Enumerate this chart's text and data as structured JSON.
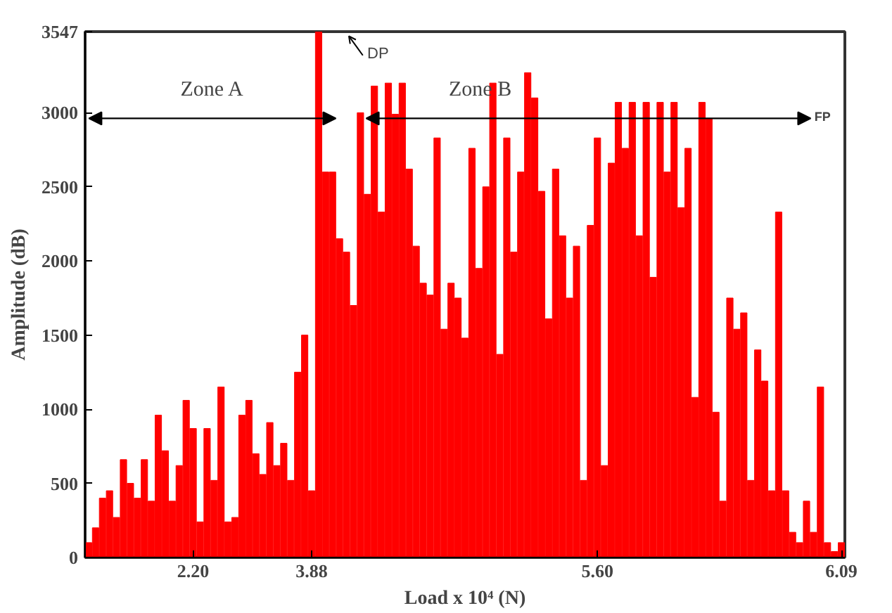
{
  "chart_data": {
    "type": "bar",
    "xlabel": "Load x 10⁴ (N)",
    "ylabel": "Amplitude (dB)",
    "color": "#ff0000",
    "categories": [
      null,
      null,
      null,
      null,
      null,
      null,
      null,
      null,
      null,
      null,
      null,
      null,
      null,
      null,
      null,
      "2.20",
      null,
      null,
      null,
      null,
      null,
      null,
      null,
      null,
      null,
      null,
      null,
      null,
      null,
      null,
      null,
      null,
      "3.88",
      null,
      null,
      null,
      null,
      null,
      null,
      null,
      null,
      null,
      null,
      null,
      null,
      null,
      null,
      null,
      null,
      null,
      null,
      null,
      null,
      null,
      null,
      null,
      null,
      null,
      null,
      null,
      null,
      null,
      null,
      null,
      null,
      null,
      null,
      null,
      null,
      null,
      null,
      null,
      null,
      "5.60",
      null,
      null,
      null,
      null,
      null,
      null,
      null,
      null,
      null,
      null,
      null,
      null,
      null,
      null,
      null,
      null,
      null,
      null,
      null,
      null,
      null,
      null,
      null,
      null,
      null,
      null,
      null,
      null,
      null,
      null,
      null,
      null,
      null,
      null,
      "6.09"
    ],
    "values": [
      100,
      200,
      400,
      450,
      270,
      660,
      500,
      400,
      660,
      380,
      960,
      720,
      380,
      620,
      1060,
      870,
      240,
      870,
      520,
      1150,
      240,
      270,
      960,
      1060,
      700,
      560,
      910,
      620,
      770,
      520,
      1250,
      1500,
      450,
      3547,
      2600,
      2600,
      2150,
      2060,
      1700,
      3000,
      2450,
      3180,
      2330,
      3200,
      2990,
      3200,
      2620,
      2100,
      1850,
      1770,
      2830,
      1540,
      1850,
      1750,
      1480,
      2760,
      1950,
      2500,
      3200,
      1370,
      2830,
      2060,
      2600,
      3270,
      3100,
      2470,
      1610,
      2620,
      2170,
      1750,
      2100,
      520,
      2240,
      2830,
      620,
      2660,
      3070,
      2760,
      3070,
      2170,
      3070,
      1890,
      3070,
      2600,
      3070,
      2360,
      2760,
      1080,
      3070,
      2960,
      980,
      380,
      1750,
      1540,
      1650,
      520,
      1400,
      1190,
      450,
      2330,
      450,
      170,
      100,
      380,
      170,
      1150,
      100,
      40,
      100
    ],
    "ylim": [
      0,
      3547
    ],
    "yticks": [
      0,
      500,
      1000,
      1500,
      2000,
      2500,
      3000,
      3547
    ],
    "annotations": [
      "Zone A",
      "Zone B",
      "DP",
      "FP"
    ],
    "grid": false
  }
}
